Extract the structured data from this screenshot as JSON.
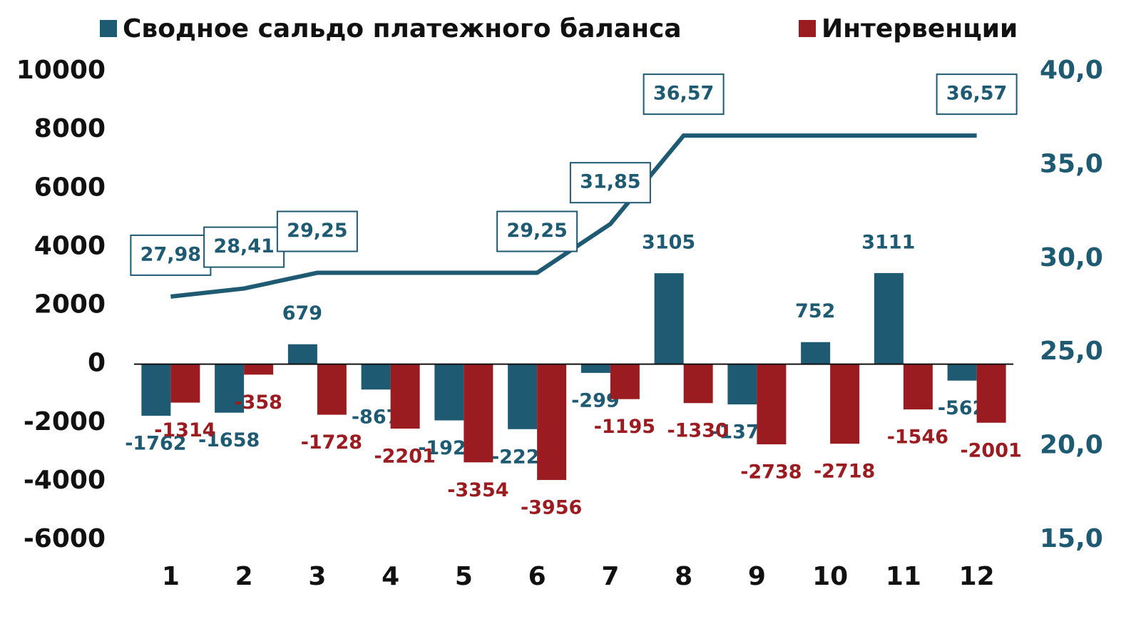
{
  "chart_data": {
    "type": "bar",
    "categories": [
      "1",
      "2",
      "3",
      "4",
      "5",
      "6",
      "7",
      "8",
      "9",
      "10",
      "11",
      "12"
    ],
    "series": [
      {
        "name": "Сводное сальдо платежного баланса",
        "color": "#1f5a73",
        "values": [
          -1762,
          -1658,
          679,
          -867,
          -1921,
          -2220,
          -299,
          3105,
          -1375,
          752,
          3111,
          -562
        ]
      },
      {
        "name": "Интервенции",
        "color": "#9b1c20",
        "values": [
          -1314,
          -358,
          -1728,
          -2201,
          -3354,
          -3956,
          -1195,
          -1330,
          -2738,
          -2718,
          -1546,
          -2001
        ]
      },
      {
        "type": "line",
        "axis": "y2",
        "color": "#1f5a73",
        "values": [
          27.98,
          28.41,
          29.25,
          29.25,
          29.25,
          29.25,
          31.85,
          36.57,
          36.57,
          36.57,
          36.57,
          36.57
        ],
        "value_labels": [
          "27,98",
          "28,41",
          "29,25",
          null,
          null,
          "29,25",
          "31,85",
          "36,57",
          null,
          null,
          null,
          "36,57"
        ]
      }
    ],
    "ylim": [
      -6000,
      10000
    ],
    "yticks": [
      -6000,
      -4000,
      -2000,
      0,
      2000,
      4000,
      6000,
      8000,
      10000
    ],
    "y2lim": [
      15,
      40
    ],
    "y2ticks": [
      {
        "value": 15,
        "label": "15,0"
      },
      {
        "value": 20,
        "label": "20,0"
      },
      {
        "value": 25,
        "label": "25,0"
      },
      {
        "value": 30,
        "label": "30,0"
      },
      {
        "value": 35,
        "label": "35,0"
      },
      {
        "value": 40,
        "label": "40,0"
      }
    ]
  }
}
